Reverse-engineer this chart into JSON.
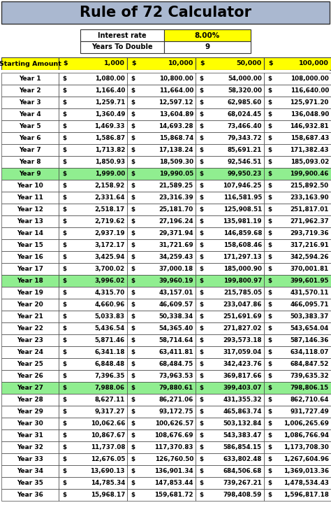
{
  "title": "Rule of 72 Calculator",
  "interest_rate": "8.00%",
  "years_to_double": "9",
  "starting_amounts": [
    1000,
    10000,
    50000,
    100000
  ],
  "num_years": 36,
  "rate": 0.08,
  "highlight_years": [
    9,
    18,
    27
  ],
  "title_bg": "#aab8d0",
  "header_bg": "#ffff00",
  "highlight_bg": "#90ee90",
  "white_bg": "#ffffff",
  "border_color": "#555555",
  "amounts_labels": [
    "1,000",
    "10,000",
    "50,000",
    "100,000"
  ]
}
